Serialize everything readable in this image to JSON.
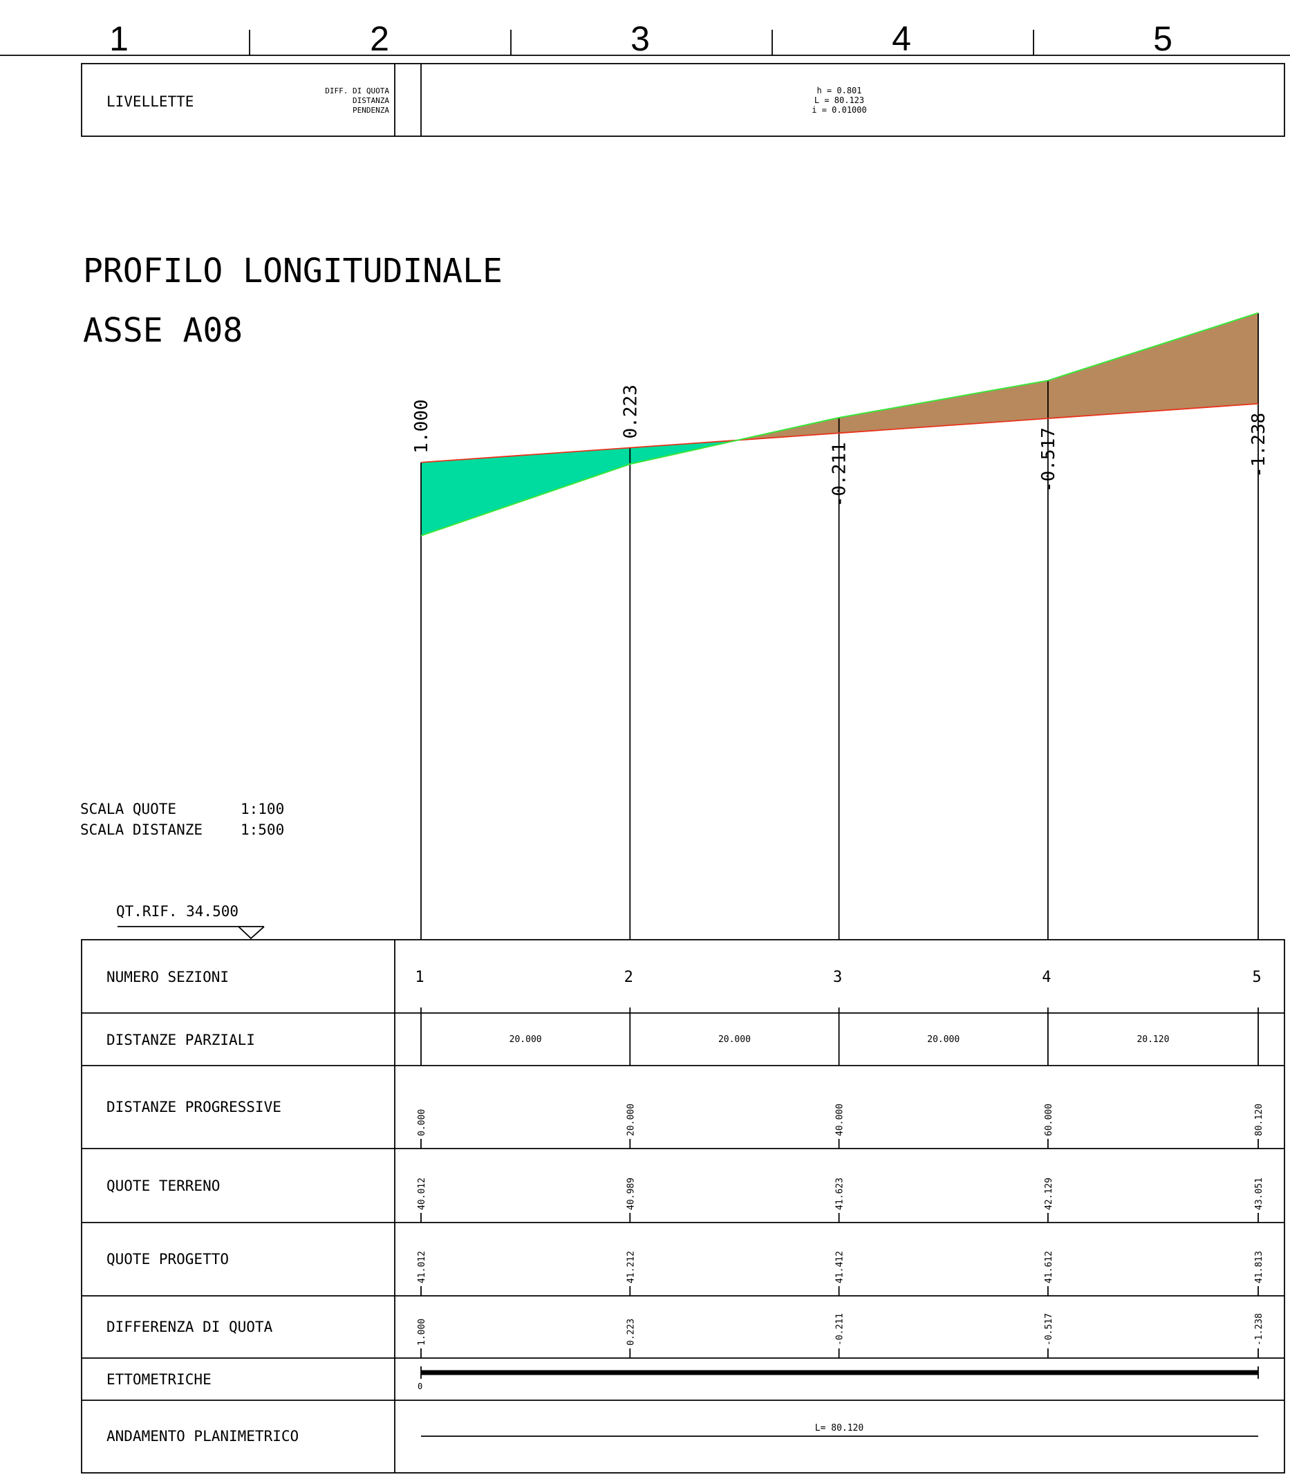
{
  "top_ruler": {
    "labels": [
      "1",
      "2",
      "3",
      "4",
      "5"
    ]
  },
  "livellette": {
    "row_label": "LIVELLETTE",
    "legend": [
      "DIFF. DI QUOTA",
      "DISTANZA",
      "PENDENZA"
    ],
    "values": [
      "h = 0.801",
      "L = 80.123",
      "i = 0.01000"
    ]
  },
  "header": {
    "title": "PROFILO LONGITUDINALE",
    "subtitle": "ASSE A08"
  },
  "scales": {
    "quote_label": "SCALA QUOTE",
    "quote_value": "1:100",
    "distanze_label": "SCALA DISTANZE",
    "distanze_value": "1:500"
  },
  "reference": {
    "label": "QT.RIF. 34.500"
  },
  "profile": {
    "units": "m",
    "reference_elevation": 34.5,
    "stations": [
      {
        "section": "1",
        "progressive": 0.0,
        "ground": 40.012,
        "design": 41.012,
        "difference": "1.000"
      },
      {
        "section": "2",
        "progressive": 20.0,
        "ground": 40.989,
        "design": 41.212,
        "difference": "0.223"
      },
      {
        "section": "3",
        "progressive": 40.0,
        "ground": 41.623,
        "design": 41.412,
        "difference": "-0.211"
      },
      {
        "section": "4",
        "progressive": 60.0,
        "ground": 42.129,
        "design": 41.612,
        "difference": "-0.517"
      },
      {
        "section": "5",
        "progressive": 80.12,
        "ground": 43.051,
        "design": 41.813,
        "difference": "-1.238"
      }
    ],
    "fill_color": "#00dc9f",
    "cut_color": "#b8895d",
    "ground_line_color": "#39e639",
    "design_line_color": "#e8331c"
  },
  "table": {
    "rows": [
      {
        "label": "NUMERO SEZIONI",
        "values": [
          "1",
          "2",
          "3",
          "4",
          "5"
        ]
      },
      {
        "label": "DISTANZE PARZIALI",
        "values": [
          "20.000",
          "20.000",
          "20.000",
          "20.120"
        ]
      },
      {
        "label": "DISTANZE PROGRESSIVE",
        "values": [
          "0.000",
          "20.000",
          "40.000",
          "60.000",
          "80.120"
        ]
      },
      {
        "label": "QUOTE TERRENO",
        "values": [
          "40.012",
          "40.989",
          "41.623",
          "42.129",
          "43.051"
        ]
      },
      {
        "label": "QUOTE PROGETTO",
        "values": [
          "41.012",
          "41.212",
          "41.412",
          "41.612",
          "41.813"
        ]
      },
      {
        "label": "DIFFERENZA DI QUOTA",
        "values": [
          "1.000",
          "0.223",
          "-0.211",
          "-0.517",
          "-1.238"
        ]
      },
      {
        "label": "ETTOMETRICHE",
        "values": [
          "0"
        ]
      },
      {
        "label": "ANDAMENTO PLANIMETRICO",
        "values": [
          "L= 80.120"
        ]
      }
    ]
  }
}
